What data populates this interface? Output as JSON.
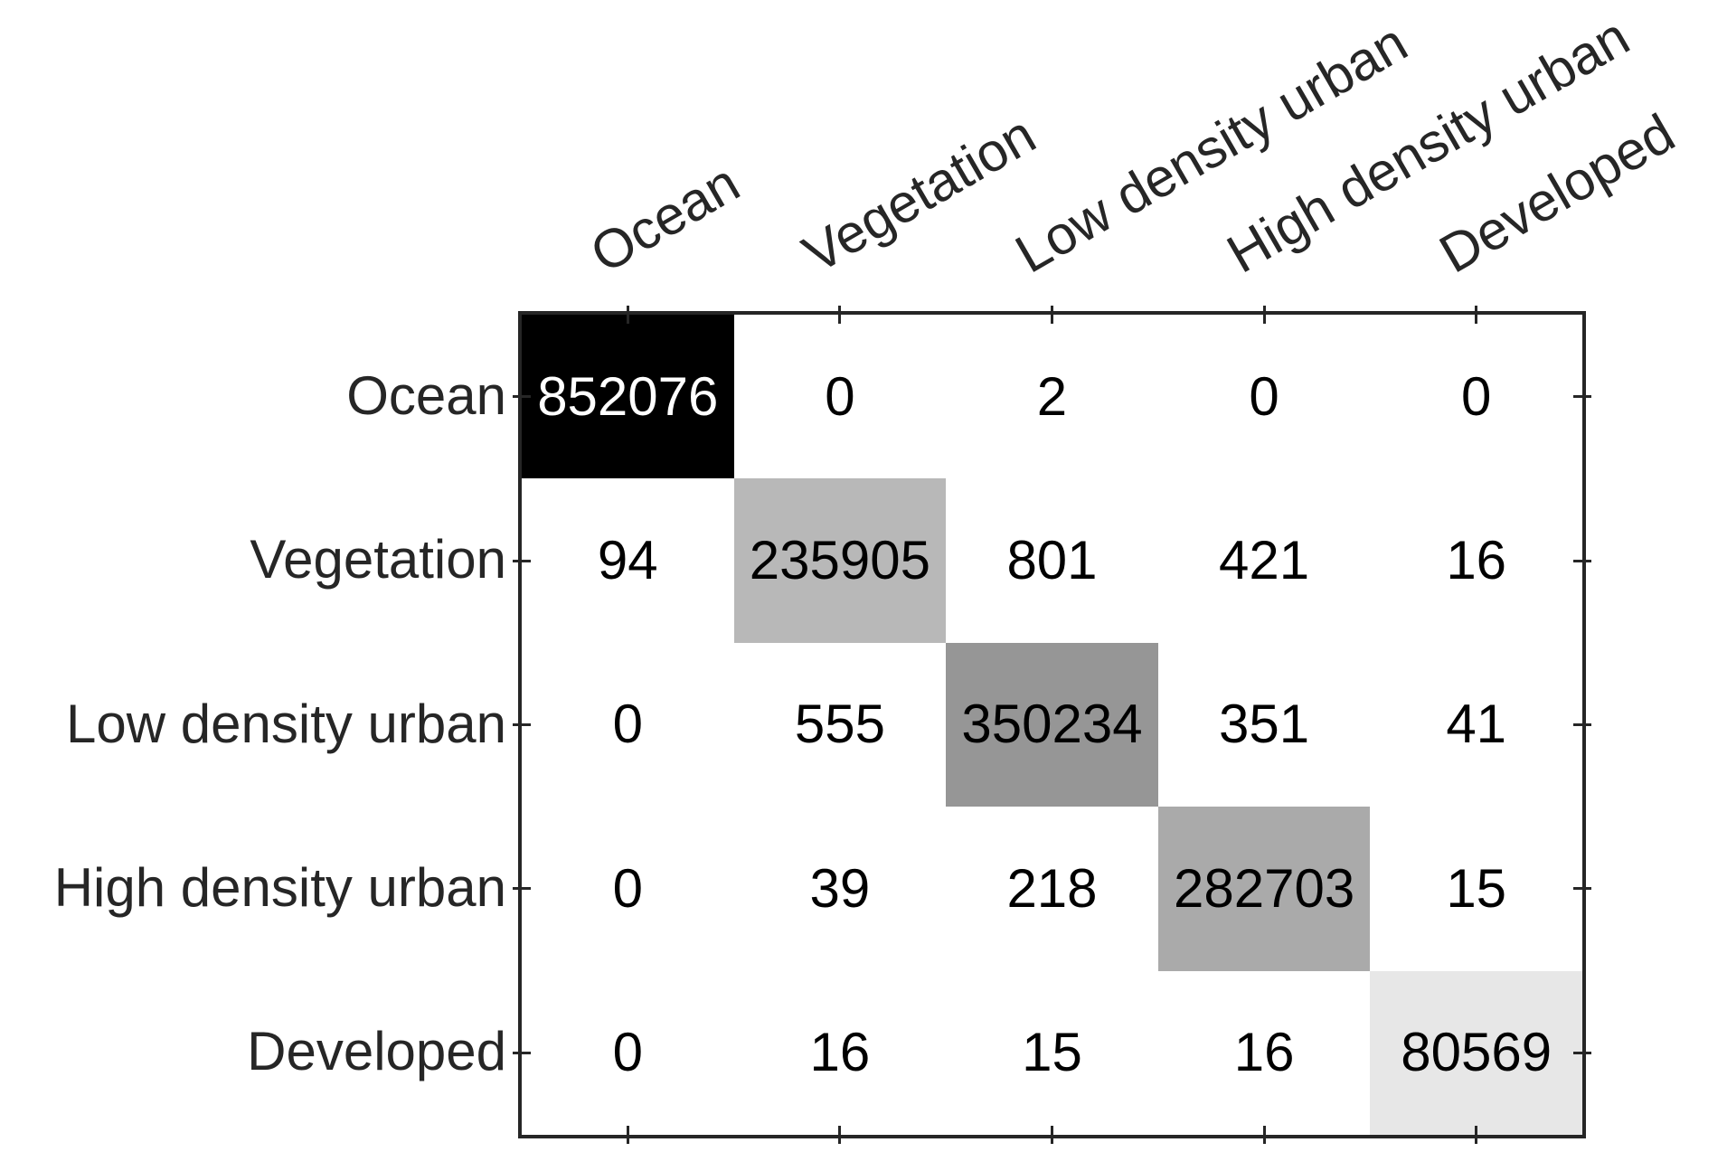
{
  "figure": {
    "background_color": "#ffffff",
    "axes_border_color": "#262626",
    "label_text_color": "#262626",
    "cell_text_color_dark": "#000000",
    "cell_text_color_light": "#ffffff",
    "off_diagonal_cell_color": "#ffffff"
  },
  "chart_data": {
    "type": "heatmap",
    "subtype": "confusion-matrix",
    "title": "",
    "xlabel": "",
    "ylabel": "",
    "grid": false,
    "legend": false,
    "row_labels": [
      "Ocean",
      "Vegetation",
      "Low density urban",
      "High density urban",
      "Developed"
    ],
    "col_labels": [
      "Ocean",
      "Vegetation",
      "Low density urban",
      "High density urban",
      "Developed"
    ],
    "matrix": [
      [
        852076,
        0,
        2,
        0,
        0
      ],
      [
        94,
        235905,
        801,
        421,
        16
      ],
      [
        0,
        555,
        350234,
        351,
        41
      ],
      [
        0,
        39,
        218,
        282703,
        15
      ],
      [
        0,
        16,
        15,
        16,
        80569
      ]
    ],
    "colormap": {
      "description": "linear white-to-black shading by cell value; only large (diagonal) values visibly shaded",
      "min_value_color": "#ffffff",
      "max_value_color": "#000000",
      "max_value": 852076
    },
    "diagonal_cell_colors": [
      "#000000",
      "#b8b8b8",
      "#969696",
      "#aaaaaa",
      "#e7e7e7"
    ],
    "diagonal_cell_text_colors": [
      "#ffffff",
      "#000000",
      "#000000",
      "#000000",
      "#000000"
    ]
  }
}
